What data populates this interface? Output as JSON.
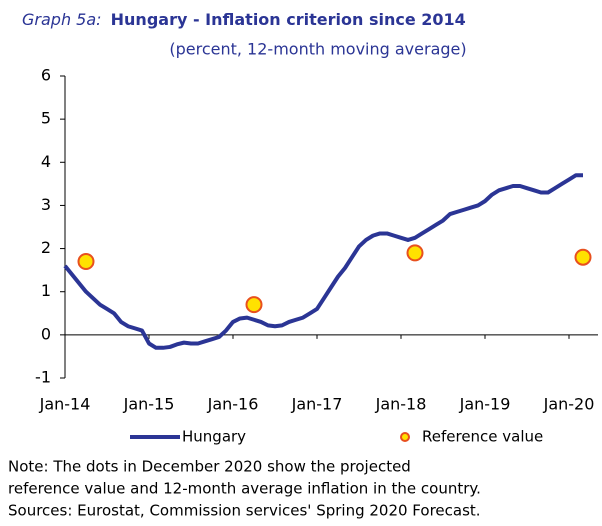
{
  "chart_data": {
    "type": "line",
    "title_prefix": "Graph 5a:",
    "title": "Hungary - Inflation criterion since 2014",
    "subtitle": "(percent, 12-month moving average)",
    "categories": [
      "Jan-14",
      null,
      null,
      null,
      null,
      null,
      null,
      null,
      null,
      null,
      null,
      null,
      "Jan-15",
      null,
      null,
      null,
      null,
      null,
      null,
      null,
      null,
      null,
      null,
      null,
      "Jan-16",
      null,
      null,
      null,
      null,
      null,
      null,
      null,
      null,
      null,
      null,
      null,
      "Jan-17",
      null,
      null,
      null,
      null,
      null,
      null,
      null,
      null,
      null,
      null,
      null,
      "Jan-18",
      null,
      null,
      null,
      null,
      null,
      null,
      null,
      null,
      null,
      null,
      null,
      "Jan-19",
      null,
      null,
      null,
      null,
      null,
      null,
      null,
      null,
      null,
      null,
      null,
      "Jan-20",
      null,
      null
    ],
    "series": [
      {
        "name": "Hungary",
        "color": "#2b3595",
        "style": "line",
        "values": [
          1.6,
          1.4,
          1.2,
          1.0,
          0.85,
          0.7,
          0.6,
          0.5,
          0.3,
          0.2,
          0.15,
          0.1,
          -0.2,
          -0.3,
          -0.3,
          -0.28,
          -0.22,
          -0.18,
          -0.2,
          -0.2,
          -0.15,
          -0.1,
          -0.05,
          0.1,
          0.3,
          0.38,
          0.4,
          0.35,
          0.3,
          0.22,
          0.2,
          0.22,
          0.3,
          0.35,
          0.4,
          0.5,
          0.6,
          0.85,
          1.1,
          1.35,
          1.55,
          1.8,
          2.05,
          2.2,
          2.3,
          2.35,
          2.35,
          2.3,
          2.25,
          2.2,
          2.25,
          2.35,
          2.45,
          2.55,
          2.65,
          2.8,
          2.85,
          2.9,
          2.95,
          3.0,
          3.1,
          3.25,
          3.35,
          3.4,
          3.45,
          3.45,
          3.4,
          3.35,
          3.3,
          3.3,
          3.4,
          3.5,
          3.6,
          3.7,
          3.7
        ]
      },
      {
        "name": "Reference value",
        "color": "#ffe100",
        "edge_color": "#e8501e",
        "style": "marker",
        "values": [
          null,
          null,
          null,
          1.7,
          null,
          null,
          null,
          null,
          null,
          null,
          null,
          null,
          null,
          null,
          null,
          null,
          null,
          null,
          null,
          null,
          null,
          null,
          null,
          null,
          null,
          null,
          null,
          0.7,
          null,
          null,
          null,
          null,
          null,
          null,
          null,
          null,
          null,
          null,
          null,
          null,
          null,
          null,
          null,
          null,
          null,
          null,
          null,
          null,
          null,
          null,
          1.9,
          null,
          null,
          null,
          null,
          null,
          null,
          null,
          null,
          null,
          null,
          null,
          null,
          null,
          null,
          null,
          null,
          null,
          null,
          null,
          null,
          null,
          null,
          null,
          1.8
        ]
      }
    ],
    "ylim": [
      -1,
      6
    ],
    "yticks": [
      -1,
      0,
      1,
      2,
      3,
      4,
      5,
      6
    ],
    "grid": false,
    "legend": "bottom",
    "notes": [
      "Note: The dots  in December 2020 show the projected",
      "reference value and 12-month average inflation in the country.",
      "Sources: Eurostat, Commission services' Spring 2020 Forecast."
    ]
  }
}
